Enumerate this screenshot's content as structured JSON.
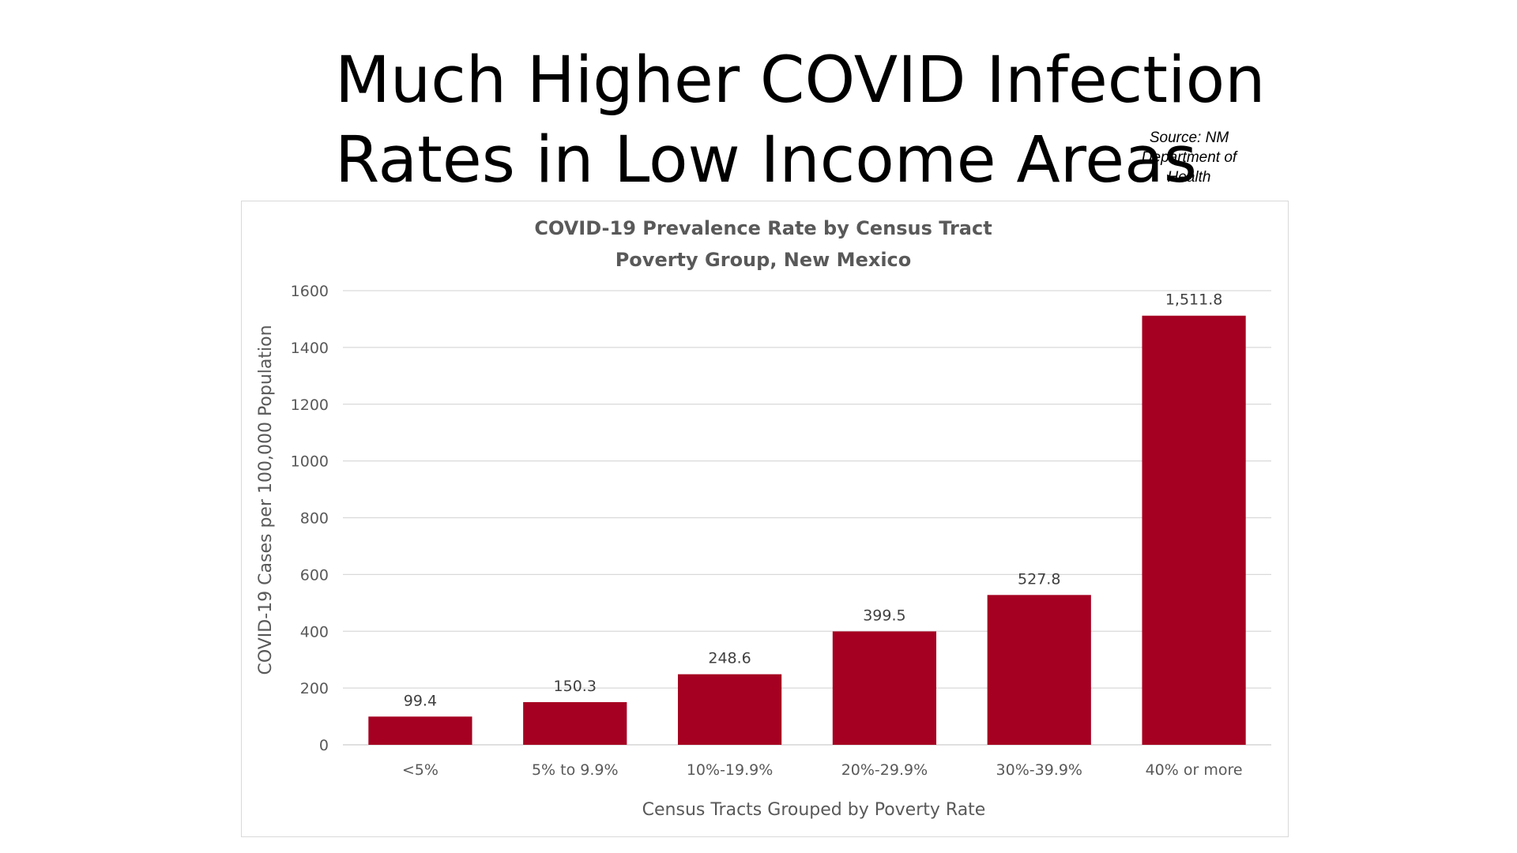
{
  "slide": {
    "title_lines": [
      "Much Higher COVID Infection",
      "Rates in Low Income Areas"
    ],
    "source_lines": [
      "Source: NM",
      "Department of",
      "Health"
    ]
  },
  "chart_data": {
    "type": "bar",
    "title_lines": [
      "COVID-19 Prevalence Rate by Census Tract",
      "Poverty Group, New Mexico"
    ],
    "categories": [
      "<5%",
      "5% to 9.9%",
      "10%-19.9%",
      "20%-29.9%",
      "30%-39.9%",
      "40% or more"
    ],
    "values": [
      99.4,
      150.3,
      248.6,
      399.5,
      527.8,
      1511.8
    ],
    "data_labels": [
      "99.4",
      "150.3",
      "248.6",
      "399.5",
      "527.8",
      "1,511.8"
    ],
    "xlabel": "Census Tracts Grouped by Poverty Rate",
    "ylabel": "COVID-19 Cases per 100,000 Population",
    "ylim": [
      0,
      1600
    ],
    "yticks": [
      0,
      200,
      400,
      600,
      800,
      1000,
      1200,
      1400,
      1600
    ],
    "grid": true,
    "bar_color": "#A50021",
    "gridline_color": "#D9D9D9"
  }
}
